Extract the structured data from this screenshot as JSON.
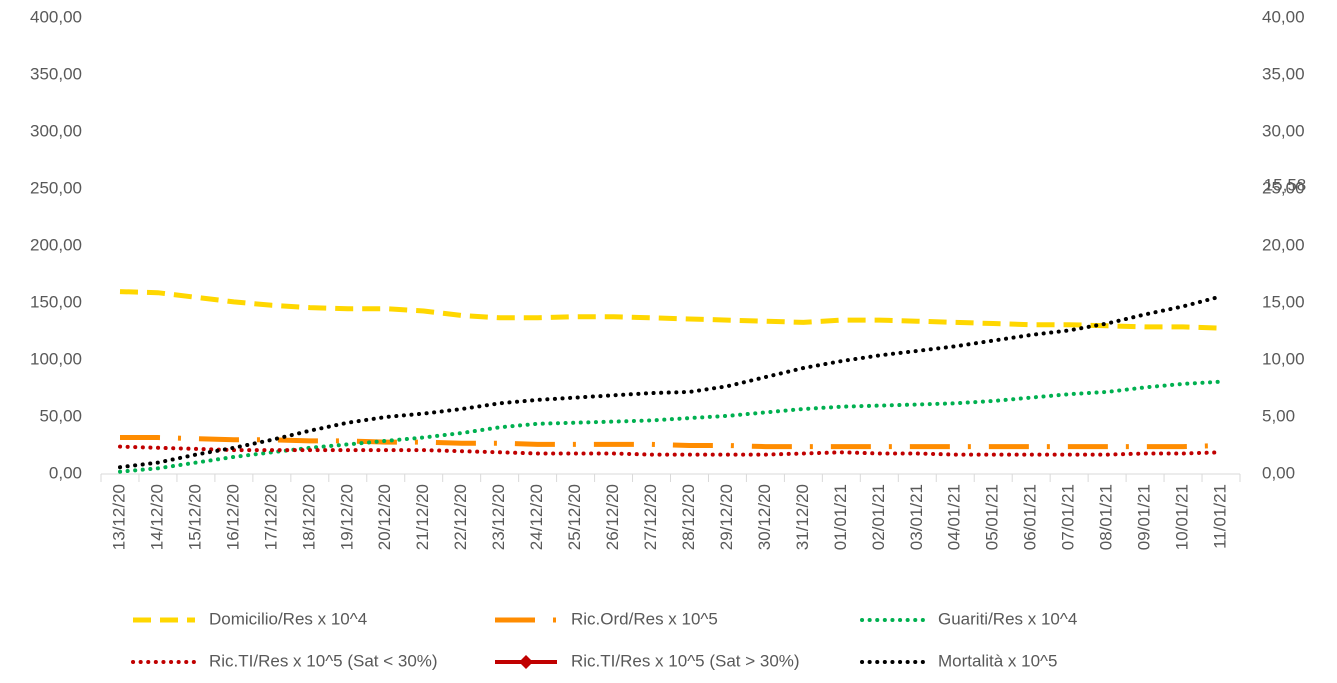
{
  "chart_data": {
    "type": "line",
    "categories": [
      "13/12/20",
      "14/12/20",
      "15/12/20",
      "16/12/20",
      "17/12/20",
      "18/12/20",
      "19/12/20",
      "20/12/20",
      "21/12/20",
      "22/12/20",
      "23/12/20",
      "24/12/20",
      "25/12/20",
      "26/12/20",
      "27/12/20",
      "28/12/20",
      "29/12/20",
      "30/12/20",
      "31/12/20",
      "01/01/21",
      "02/01/21",
      "03/01/21",
      "04/01/21",
      "05/01/21",
      "06/01/21",
      "07/01/21",
      "08/01/21",
      "09/01/21",
      "10/01/21",
      "11/01/21"
    ],
    "ylim": [
      0,
      400
    ],
    "yticks": [
      {
        "value": 0,
        "label": "0,00"
      },
      {
        "value": 50,
        "label": "50,00"
      },
      {
        "value": 100,
        "label": "100,00"
      },
      {
        "value": 150,
        "label": "150,00"
      },
      {
        "value": 200,
        "label": "200,00"
      },
      {
        "value": 250,
        "label": "250,00"
      },
      {
        "value": 300,
        "label": "300,00"
      },
      {
        "value": 350,
        "label": "350,00"
      },
      {
        "value": 400,
        "label": "400,00"
      }
    ],
    "y2lim": [
      0,
      40
    ],
    "y2ticks": [
      {
        "value": 0,
        "label": "0,00"
      },
      {
        "value": 5,
        "label": "5,00"
      },
      {
        "value": 10,
        "label": "10,00"
      },
      {
        "value": 15,
        "label": "15,00"
      },
      {
        "value": 20,
        "label": "20,00"
      },
      {
        "value": 25,
        "label": "25,00"
      },
      {
        "value": 30,
        "label": "30,00"
      },
      {
        "value": 35,
        "label": "35,00"
      },
      {
        "value": 40,
        "label": "40,00"
      }
    ],
    "series": [
      {
        "name": "Domicilio/Res x 10^4",
        "color": "#ffd700",
        "line_style": "dashed",
        "values": [
          160,
          159,
          155,
          151,
          148,
          146,
          145,
          145,
          143,
          139,
          137,
          137,
          138,
          138,
          137,
          136,
          135,
          134,
          133,
          135,
          135,
          134,
          133,
          132,
          131,
          131,
          130,
          129,
          129,
          128
        ]
      },
      {
        "name": "Ric.Ord/Res x 10^5",
        "color": "#ff8c00",
        "line_style": "long-dash-dot",
        "values": [
          32,
          32,
          31,
          30,
          30,
          29,
          29,
          28,
          28,
          27,
          27,
          26,
          26,
          26,
          26,
          25,
          25,
          24,
          24,
          24,
          24,
          24,
          24,
          24,
          24,
          24,
          24,
          24,
          24,
          25
        ]
      },
      {
        "name": "Guariti/Res x 10^4",
        "color": "#00b050",
        "line_style": "dotted",
        "values": [
          2,
          5,
          10,
          15,
          19,
          23,
          26,
          29,
          32,
          36,
          41,
          44,
          45,
          46,
          47,
          49,
          51,
          54,
          57,
          59,
          60,
          61,
          62,
          64,
          67,
          70,
          72,
          76,
          79,
          81
        ]
      },
      {
        "name": "Ric.TI/Res x 10^5 (Sat < 30%)",
        "color": "#c00000",
        "line_style": "dotted",
        "values": [
          24,
          23,
          22,
          21,
          21,
          21,
          21,
          21,
          21,
          20,
          19,
          18,
          18,
          18,
          17,
          17,
          17,
          17,
          18,
          19,
          18,
          18,
          17,
          17,
          17,
          17,
          17,
          18,
          18,
          19
        ]
      },
      {
        "name": "Ric.TI/Res x 10^5 (Sat > 30%)",
        "color": "#c00000",
        "line_style": "solid-diamond",
        "values": [
          null,
          null,
          null,
          null,
          null,
          null,
          null,
          null,
          null,
          null,
          null,
          null,
          null,
          null,
          null,
          null,
          null,
          null,
          null,
          null,
          null,
          null,
          null,
          null,
          null,
          null,
          null,
          null,
          null,
          null
        ]
      },
      {
        "name": "Mortalità x 10^5",
        "color": "#000000",
        "line_style": "dotted",
        "axis": "y2",
        "values": [
          0.6,
          1.0,
          1.7,
          2.3,
          3.0,
          3.8,
          4.5,
          5.0,
          5.3,
          5.7,
          6.2,
          6.5,
          6.7,
          6.9,
          7.1,
          7.2,
          7.7,
          8.5,
          9.3,
          9.9,
          10.4,
          10.8,
          11.2,
          11.7,
          12.2,
          12.6,
          13.2,
          14.0,
          14.7,
          15.58
        ],
        "value_labels": [
          null,
          null,
          null,
          null,
          null,
          null,
          null,
          null,
          null,
          null,
          null,
          null,
          null,
          null,
          null,
          null,
          null,
          null,
          null,
          null,
          null,
          null,
          null,
          null,
          null,
          null,
          null,
          null,
          null,
          "15,58"
        ]
      }
    ]
  }
}
